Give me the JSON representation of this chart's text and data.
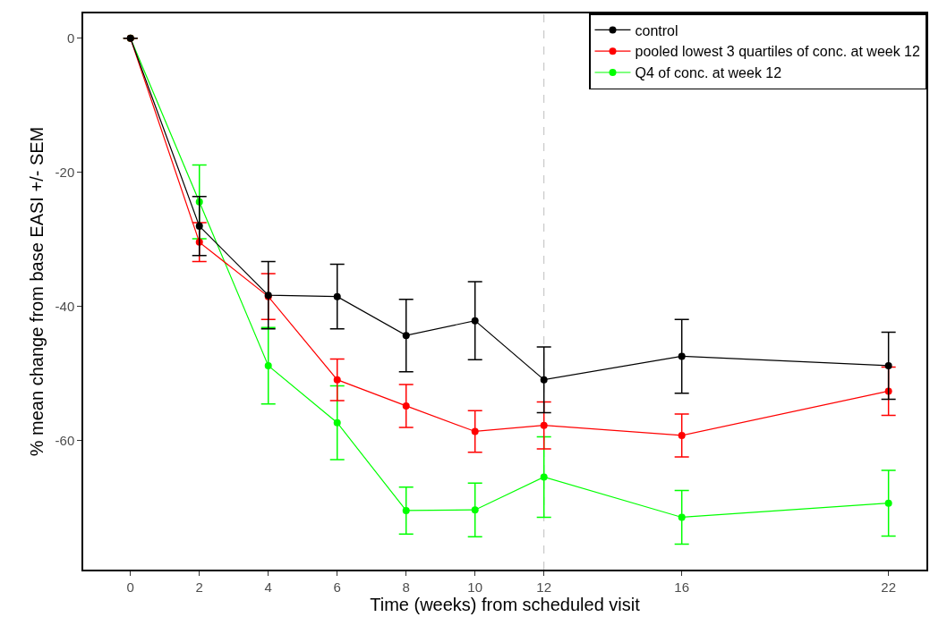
{
  "chart_data": {
    "type": "line",
    "xlabel": "Time (weeks) from scheduled visit",
    "ylabel": "% mean change from base EASI +/- SEM",
    "x": [
      0,
      2,
      4,
      6,
      8,
      10,
      12,
      16,
      22
    ],
    "series": [
      {
        "name": "control",
        "color": "#000000",
        "values": [
          0,
          -28.0,
          -38.3,
          -38.5,
          -44.3,
          -42.1,
          -50.9,
          -47.4,
          -48.8
        ],
        "errors": [
          null,
          4.4,
          5.0,
          4.8,
          5.4,
          5.8,
          4.9,
          5.5,
          5.0
        ]
      },
      {
        "name": "pooled lowest 3 quartiles of conc. at week 12",
        "color": "#ff0000",
        "values": [
          0,
          -30.4,
          -38.5,
          -50.9,
          -54.8,
          -58.6,
          -57.7,
          -59.2,
          -52.6
        ],
        "errors": [
          null,
          2.9,
          3.4,
          3.1,
          3.2,
          3.1,
          3.5,
          3.2,
          3.6
        ]
      },
      {
        "name": "Q4 of conc. at week 12",
        "color": "#00ff00",
        "values": [
          0,
          -24.4,
          -48.8,
          -57.3,
          -70.4,
          -70.3,
          -65.4,
          -71.4,
          -69.3
        ],
        "errors": [
          null,
          5.5,
          5.7,
          5.5,
          3.5,
          4.0,
          6.0,
          4.0,
          4.9
        ]
      }
    ],
    "xlim": [
      -1.37,
      23.1
    ],
    "ylim": [
      -79.2,
      3.7
    ],
    "xticks": [
      0,
      2,
      4,
      6,
      8,
      10,
      12,
      16,
      22
    ],
    "yticks": [
      0,
      -20,
      -40,
      -60
    ],
    "ref_lines": [
      {
        "axis": "x",
        "value": 12,
        "color": "#bebebe",
        "line_style": "dashed"
      }
    ],
    "grid": false,
    "legend": "top right",
    "marker": "circle",
    "line_style": "solid"
  }
}
